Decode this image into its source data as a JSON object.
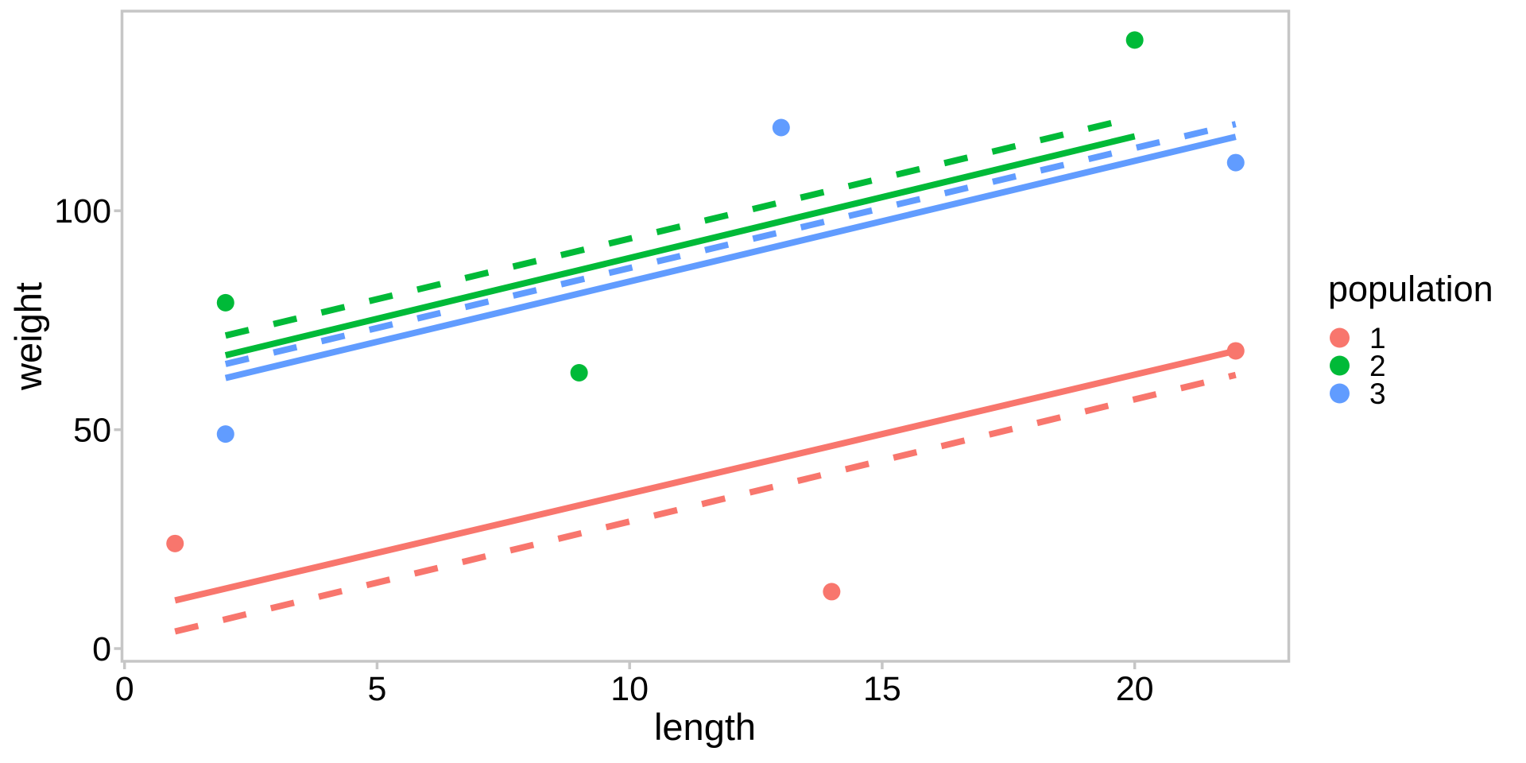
{
  "chart_data": {
    "type": "scatter",
    "xlabel": "length",
    "ylabel": "weight",
    "x_ticks": [
      0,
      5,
      10,
      15,
      20
    ],
    "y_ticks": [
      0,
      50,
      100
    ],
    "xlim": [
      -0.05,
      23.05
    ],
    "ylim": [
      -2.9,
      145.6
    ],
    "grid": false,
    "panel_background": "#ffffff",
    "axis_color": "#c6c6c6",
    "text_color": "#000000",
    "legend_position": "right",
    "legend_title": "population",
    "series": [
      {
        "name": "1",
        "color": "#F8766D",
        "points": [
          [
            1,
            24
          ],
          [
            14,
            13
          ],
          [
            22,
            68
          ]
        ],
        "lines": [
          {
            "style": "solid",
            "from": [
              1,
              11.0
            ],
            "to": [
              22,
              68.0
            ]
          },
          {
            "style": "dashed",
            "from": [
              1,
              3.9
            ],
            "to": [
              22,
              62.5
            ]
          }
        ]
      },
      {
        "name": "2",
        "color": "#00BA38",
        "points": [
          [
            2,
            79
          ],
          [
            9,
            63
          ],
          [
            20,
            139
          ]
        ],
        "lines": [
          {
            "style": "solid",
            "from": [
              2,
              67.0
            ],
            "to": [
              20,
              117.0
            ]
          },
          {
            "style": "dashed",
            "from": [
              2,
              71.5
            ],
            "to": [
              20,
              121.3
            ]
          }
        ]
      },
      {
        "name": "3",
        "color": "#619CFF",
        "points": [
          [
            2,
            49
          ],
          [
            13,
            119
          ],
          [
            22,
            111
          ]
        ],
        "lines": [
          {
            "style": "solid",
            "from": [
              2,
              61.8
            ],
            "to": [
              22,
              116.9
            ]
          },
          {
            "style": "dashed",
            "from": [
              2,
              65.0
            ],
            "to": [
              22,
              119.8
            ]
          }
        ]
      }
    ]
  }
}
